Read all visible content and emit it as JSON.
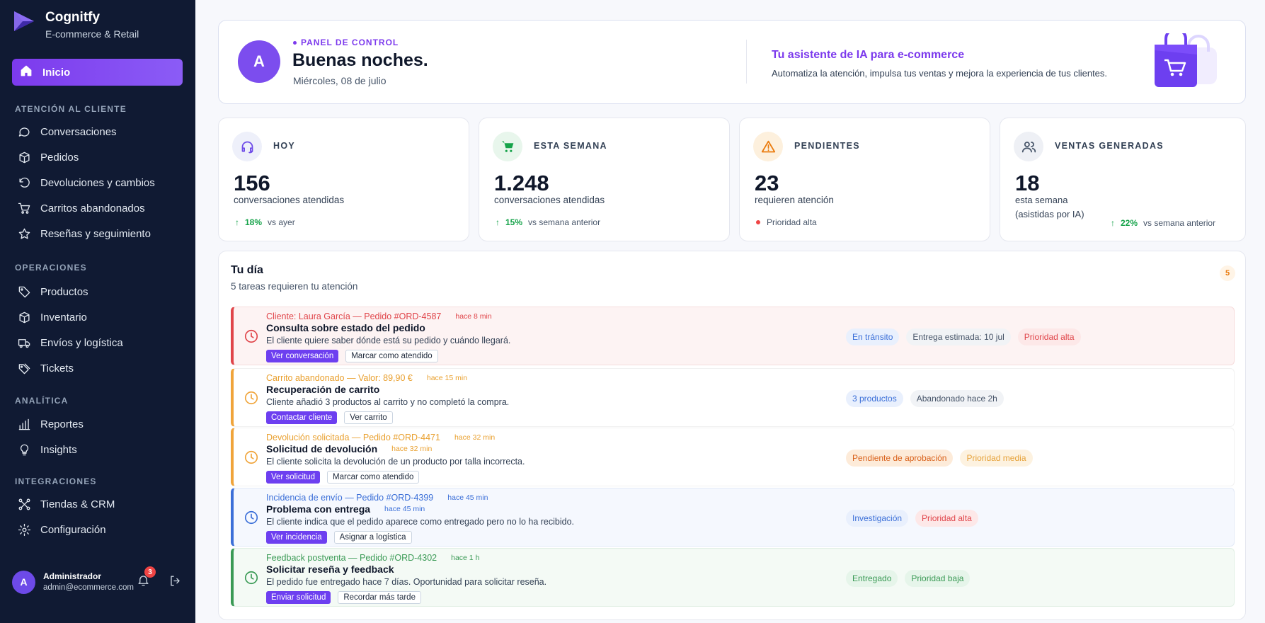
{
  "brand": {
    "name": "Cognitfy",
    "subtitle": "E-commerce & Retail"
  },
  "nav": {
    "active": "Inicio",
    "sections": [
      {
        "title": "ATENCIÓN AL CLIENTE",
        "items": [
          "Conversaciones",
          "Pedidos",
          "Devoluciones y cambios",
          "Carritos abandonados",
          "Reseñas y seguimiento"
        ]
      },
      {
        "title": "OPERACIONES",
        "items": [
          "Productos",
          "Inventario",
          "Envíos y logística",
          "Tickets"
        ]
      },
      {
        "title": "ANALÍTICA",
        "items": [
          "Reportes",
          "Insights"
        ]
      },
      {
        "title": "INTEGRACIONES",
        "items": [
          "Tiendas & CRM",
          "Configuración"
        ]
      }
    ]
  },
  "user": {
    "initial": "A",
    "name": "Administrador",
    "email": "admin@ecommerce.com",
    "notifications": "3"
  },
  "header": {
    "avatar_initial": "A",
    "kicker": "PANEL DE CONTROL",
    "greeting": "Buenas noches.",
    "date": "Miércoles, 08 de julio",
    "ai_title": "Tu asistente de IA para e-commerce",
    "ai_subtitle": "Automatiza la atención, impulsa tus ventas y mejora la experiencia de tus clientes."
  },
  "stats": [
    {
      "label": "HOY",
      "value": "156",
      "desc": "conversaciones atendidas",
      "trend": "18%",
      "trend_note": "vs ayer",
      "icon": "headset-icon",
      "color": "#6d4ae8"
    },
    {
      "label": "ESTA SEMANA",
      "value": "1.248",
      "desc": "conversaciones atendidas",
      "trend": "15%",
      "trend_note": "vs semana anterior",
      "icon": "cart-icon",
      "color": "#16a34a"
    },
    {
      "label": "PENDIENTES",
      "value": "23",
      "desc": "requieren atención",
      "priority": "Prioridad alta",
      "icon": "warning-icon",
      "color": "#ea7a0c"
    },
    {
      "label": "VENTAS GENERADAS",
      "value": "18",
      "desc_line1": "esta semana",
      "desc_line2": "(asistidas por IA)",
      "trend": "22%",
      "trend_note": "vs semana anterior",
      "icon": "users-icon",
      "color": "#475569"
    }
  ],
  "tasks_panel": {
    "title": "Tu día",
    "subtitle": "5 tareas requieren tu atención",
    "count": "5",
    "tasks": [
      {
        "meta": "Cliente: Laura García — Pedido #ORD-4587",
        "time": "hace 8 min",
        "title": "Consulta sobre estado del pedido",
        "desc": "El cliente quiere saber dónde está su pedido y cuándo llegará.",
        "primary": "Ver conversación",
        "secondary": "Marcar como atendido",
        "chips": [
          "En tránsito",
          "Entrega estimada: 10 jul",
          "Prioridad alta"
        ],
        "color": "#e0454a"
      },
      {
        "meta": "Carrito abandonado — Valor: 89,90 €",
        "time": "hace 15 min",
        "title": "Recuperación de carrito",
        "desc": "Cliente añadió 3 productos al carrito y no completó la compra.",
        "primary": "Contactar cliente",
        "secondary": "Ver carrito",
        "chips": [
          "3 productos",
          "Abandonado hace 2h"
        ],
        "color": "#f0a43a"
      },
      {
        "meta": "Devolución solicitada — Pedido #ORD-4471",
        "time": "hace 32 min",
        "title": "Solicitud de devolución",
        "title_time": "hace 32 min",
        "desc": "El cliente solicita la devolución de un producto por talla incorrecta.",
        "primary": "Ver solicitud",
        "secondary": "Marcar como atendido",
        "chips": [
          "Pendiente de aprobación",
          "Prioridad media"
        ],
        "color": "#f0a43a"
      },
      {
        "meta": "Incidencia de envío — Pedido #ORD-4399",
        "time": "hace 45 min",
        "title": "Problema con entrega",
        "title_time": "hace 45 min",
        "desc": "El cliente indica que el pedido aparece como entregado pero no lo ha recibido.",
        "primary": "Ver incidencia",
        "secondary": "Asignar a logística",
        "chips": [
          "Investigación",
          "Prioridad alta"
        ],
        "color": "#3b6fd8"
      },
      {
        "meta": "Feedback postventa — Pedido #ORD-4302",
        "time": "hace 1 h",
        "title": "Solicitar reseña y feedback",
        "desc": "El pedido fue entregado hace 7 días. Oportunidad para solicitar reseña.",
        "primary": "Enviar solicitud",
        "secondary": "Recordar más tarde",
        "chips": [
          "Entregado",
          "Prioridad baja"
        ],
        "color": "#3a9a55"
      }
    ]
  }
}
